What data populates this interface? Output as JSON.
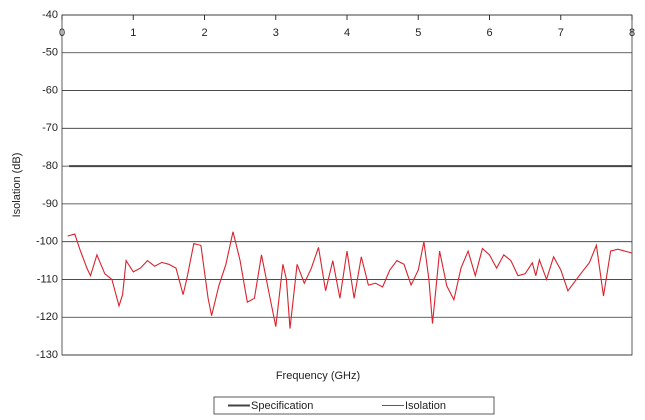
{
  "chart_data": {
    "type": "line",
    "xlabel": "Frequency (GHz)",
    "ylabel": "Isolation (dB)",
    "xlim": [
      0,
      8
    ],
    "xticks": [
      0,
      1,
      2,
      3,
      4,
      5,
      6,
      7,
      8
    ],
    "ylim": [
      -130,
      -40
    ],
    "yticks": [
      -130,
      -120,
      -110,
      -100,
      -90,
      -80,
      -70,
      -60,
      -50,
      -40
    ],
    "grid": true,
    "legend": "bottom",
    "series": [
      {
        "name": "Specification",
        "color": "#444444",
        "x": [
          0.1,
          8
        ],
        "values": [
          -80,
          -80
        ]
      },
      {
        "name": "Isolation",
        "color": "#d9232e",
        "x": [
          0.08,
          0.18,
          0.25,
          0.35,
          0.4,
          0.49,
          0.6,
          0.7,
          0.8,
          0.85,
          0.9,
          1.0,
          1.1,
          1.2,
          1.3,
          1.4,
          1.5,
          1.6,
          1.7,
          1.75,
          1.85,
          1.95,
          2.05,
          2.1,
          2.2,
          2.3,
          2.4,
          2.5,
          2.6,
          2.7,
          2.8,
          2.9,
          3.0,
          3.1,
          3.15,
          3.2,
          3.3,
          3.4,
          3.5,
          3.6,
          3.7,
          3.8,
          3.9,
          4.0,
          4.1,
          4.2,
          4.3,
          4.4,
          4.5,
          4.6,
          4.7,
          4.8,
          4.9,
          5.0,
          5.08,
          5.15,
          5.2,
          5.3,
          5.4,
          5.5,
          5.6,
          5.7,
          5.8,
          5.9,
          6.0,
          6.1,
          6.2,
          6.3,
          6.4,
          6.5,
          6.6,
          6.65,
          6.7,
          6.8,
          6.9,
          7.0,
          7.1,
          7.2,
          7.3,
          7.4,
          7.5,
          7.6,
          7.7,
          7.8,
          8.0
        ],
        "values": [
          -98.5,
          -98,
          -102,
          -107,
          -109,
          -103.5,
          -108.5,
          -110,
          -117,
          -114,
          -105,
          -108,
          -107,
          -105,
          -106.5,
          -105.5,
          -106,
          -107,
          -114,
          -110,
          -100.5,
          -101,
          -115,
          -119.6,
          -111.7,
          -106,
          -97.4,
          -105,
          -116,
          -115,
          -103.5,
          -113,
          -122.5,
          -106,
          -110,
          -123,
          -106,
          -111,
          -107,
          -101.5,
          -113,
          -105,
          -115,
          -102.5,
          -115,
          -104,
          -111.5,
          -111,
          -112,
          -107.5,
          -105,
          -106,
          -111.5,
          -107.5,
          -100,
          -110,
          -121.7,
          -102.5,
          -111.7,
          -115.4,
          -107,
          -102.5,
          -109,
          -101.8,
          -103.5,
          -107,
          -103.5,
          -105,
          -109,
          -108.5,
          -105.6,
          -109,
          -104.8,
          -110,
          -104,
          -107.5,
          -113,
          -110.5,
          -108,
          -105.6,
          -101,
          -114.4,
          -102.5,
          -102,
          -103
        ]
      }
    ]
  }
}
